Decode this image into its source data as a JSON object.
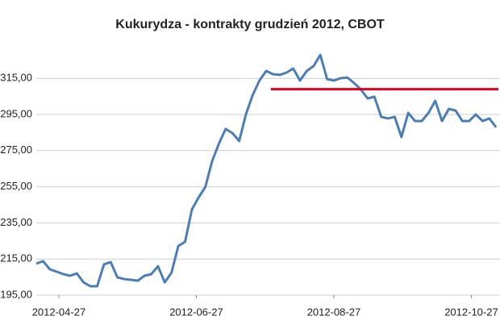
{
  "chart_data": {
    "type": "line",
    "title": "Kukurydza - kontrakty grudzień 2012, CBOT",
    "x": [
      "2012-04-17",
      "2012-04-20",
      "2012-04-23",
      "2012-04-26",
      "2012-04-29",
      "2012-05-02",
      "2012-05-05",
      "2012-05-08",
      "2012-05-11",
      "2012-05-14",
      "2012-05-17",
      "2012-05-20",
      "2012-05-23",
      "2012-05-26",
      "2012-05-29",
      "2012-06-01",
      "2012-06-04",
      "2012-06-07",
      "2012-06-10",
      "2012-06-13",
      "2012-06-16",
      "2012-06-19",
      "2012-06-22",
      "2012-06-25",
      "2012-06-28",
      "2012-07-01",
      "2012-07-04",
      "2012-07-07",
      "2012-07-10",
      "2012-07-13",
      "2012-07-16",
      "2012-07-19",
      "2012-07-22",
      "2012-07-25",
      "2012-07-28",
      "2012-07-31",
      "2012-08-03",
      "2012-08-06",
      "2012-08-09",
      "2012-08-12",
      "2012-08-15",
      "2012-08-18",
      "2012-08-21",
      "2012-08-24",
      "2012-08-27",
      "2012-08-30",
      "2012-09-02",
      "2012-09-05",
      "2012-09-08",
      "2012-09-11",
      "2012-09-14",
      "2012-09-17",
      "2012-09-20",
      "2012-09-23",
      "2012-09-26",
      "2012-09-29",
      "2012-10-02",
      "2012-10-05",
      "2012-10-08",
      "2012-10-11",
      "2012-10-14",
      "2012-10-17",
      "2012-10-20",
      "2012-10-23",
      "2012-10-26",
      "2012-10-29",
      "2012-11-01",
      "2012-11-04",
      "2012-11-07"
    ],
    "series": [
      {
        "color": "#4a7ebb",
        "values": [
          212.4,
          213.8,
          209.3,
          208,
          206.6,
          205.7,
          207,
          202,
          199.9,
          199.9,
          212,
          213.3,
          204.8,
          203.9,
          203.5,
          203,
          205.7,
          206.6,
          211,
          202,
          207.5,
          222.2,
          224.5,
          242.3,
          249,
          254.8,
          269.1,
          278.9,
          287,
          284.7,
          280.3,
          295,
          305.7,
          313.8,
          319.1,
          317.3,
          316.9,
          318.2,
          320.4,
          313.8,
          319.1,
          321.8,
          328,
          314.6,
          313.8,
          315.1,
          315.5,
          312.4,
          308.8,
          303.9,
          304.8,
          293.7,
          292.8,
          293.7,
          282.5,
          295.9,
          291.4,
          291.4,
          295.9,
          302.6,
          291.4,
          298.1,
          297.2,
          291.4,
          291.4,
          295,
          291.4,
          292.8,
          287.9
        ]
      }
    ],
    "reference_line": {
      "value": 309,
      "x": [
        "2012-07-30",
        "2012-11-08"
      ],
      "color": "#e3001b"
    },
    "xlim": [
      "2012-04-17",
      "2012-11-08"
    ],
    "xticks": [
      "2012-04-27",
      "2012-06-27",
      "2012-08-27",
      "2012-10-27"
    ],
    "ylim": [
      195,
      330
    ],
    "yticks": [
      {
        "value": 195,
        "label": "195,00"
      },
      {
        "value": 215,
        "label": "215,00"
      },
      {
        "value": 235,
        "label": "235,00"
      },
      {
        "value": 255,
        "label": "255,00"
      },
      {
        "value": 275,
        "label": "275,00"
      },
      {
        "value": 295,
        "label": "295,00"
      },
      {
        "value": 315,
        "label": "315,00"
      }
    ],
    "grid": true
  }
}
